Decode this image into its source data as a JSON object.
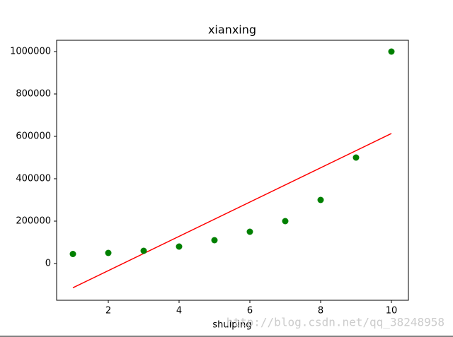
{
  "chart_data": {
    "type": "scatter",
    "title": "xianxing",
    "x_label": "shuiping",
    "x": [
      1,
      2,
      3,
      4,
      5,
      6,
      7,
      8,
      9,
      10
    ],
    "values": [
      45000,
      50000,
      60000,
      80000,
      110000,
      150000,
      200000,
      300000,
      500000,
      1000000
    ],
    "color": "#008000",
    "fit": {
      "type": "line",
      "x": [
        1,
        10
      ],
      "values": [
        -114454,
        613455
      ],
      "color": "#ff0000"
    },
    "xlim": [
      0.54,
      10.48
    ],
    "xticks": [
      2,
      4,
      6,
      8,
      10
    ],
    "ylim": [
      -173333,
      1053333
    ],
    "yticks": [
      0,
      200000,
      400000,
      600000,
      800000,
      1000000
    ],
    "watermark": "http://blog.csdn.net/qq_38248958"
  }
}
